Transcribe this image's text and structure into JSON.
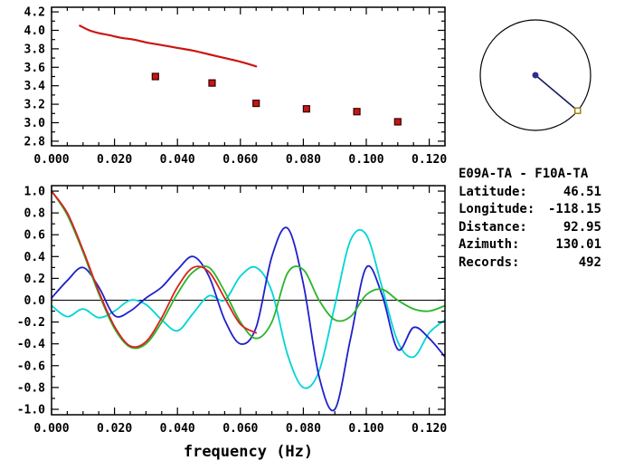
{
  "station_info": {
    "title": "E09A-TA - F10A-TA",
    "fields": [
      {
        "label": "Latitude:",
        "value": "46.51"
      },
      {
        "label": "Longitude:",
        "value": "-118.15"
      },
      {
        "label": "Distance:",
        "value": "92.95"
      },
      {
        "label": "Azimuth:",
        "value": "130.01"
      },
      {
        "label": "Records:",
        "value": "492"
      }
    ]
  },
  "azimuth_dial": {
    "azimuth_deg": 130.01,
    "line_color": "#1b1b5e",
    "dot_color": "#2e2e8f",
    "marker_color": "#a07800"
  },
  "chart_data": [
    {
      "type": "line",
      "title": "",
      "xlabel": "",
      "ylabel": "",
      "grid": false,
      "legend": "none",
      "xlim": [
        0,
        0.125
      ],
      "ylim": [
        2.75,
        4.25
      ],
      "xticks": [
        0,
        0.02,
        0.04,
        0.06,
        0.08,
        0.1,
        0.12
      ],
      "xtick_labels": [
        "0.000",
        "0.020",
        "0.040",
        "0.060",
        "0.080",
        "0.100",
        "0.120"
      ],
      "xminor_step": 0.005,
      "yticks": [
        2.8,
        3.0,
        3.2,
        3.4,
        3.6,
        3.8,
        4.0,
        4.2
      ],
      "ytick_labels": [
        "2.8",
        "3.0",
        "3.2",
        "3.4",
        "3.6",
        "3.8",
        "4.0",
        "4.2"
      ],
      "yminor_step": 0.1,
      "zero_line": false,
      "series": [
        {
          "name": "model-curve",
          "style": "line",
          "color": "#cc1414",
          "width": 2.2,
          "x": [
            0.009,
            0.012,
            0.015,
            0.018,
            0.022,
            0.026,
            0.03,
            0.035,
            0.04,
            0.045,
            0.05,
            0.055,
            0.06,
            0.065
          ],
          "y": [
            4.05,
            4.0,
            3.97,
            3.95,
            3.92,
            3.9,
            3.87,
            3.84,
            3.81,
            3.78,
            3.74,
            3.7,
            3.66,
            3.61
          ]
        },
        {
          "name": "measured-points",
          "style": "scatter-square",
          "color": "#c01818",
          "edge_color": "#3a0000",
          "x": [
            0.033,
            0.051,
            0.065,
            0.081,
            0.097,
            0.11
          ],
          "y": [
            3.5,
            3.43,
            3.21,
            3.15,
            3.12,
            3.01
          ]
        }
      ]
    },
    {
      "type": "line",
      "title": "",
      "xlabel": "frequency (Hz)",
      "ylabel": "",
      "grid": false,
      "legend": "none",
      "xlim": [
        0,
        0.125
      ],
      "ylim": [
        -1.05,
        1.05
      ],
      "xticks": [
        0,
        0.02,
        0.04,
        0.06,
        0.08,
        0.1,
        0.12
      ],
      "xtick_labels": [
        "0.000",
        "0.020",
        "0.040",
        "0.060",
        "0.080",
        "0.100",
        "0.120"
      ],
      "xminor_step": 0.005,
      "yticks": [
        -1.0,
        -0.8,
        -0.6,
        -0.4,
        -0.2,
        0.0,
        0.2,
        0.4,
        0.6,
        0.8,
        1.0
      ],
      "ytick_labels": [
        "-1.0",
        "-0.8",
        "-0.6",
        "-0.4",
        "-0.2",
        "0.0",
        "0.2",
        "0.4",
        "0.6",
        "0.8",
        "1.0"
      ],
      "yminor_step": 0.1,
      "zero_line": true,
      "series": [
        {
          "name": "trace-cyan",
          "style": "line",
          "color": "#00d5d5",
          "width": 1.8,
          "x": [
            0,
            0.005,
            0.01,
            0.015,
            0.02,
            0.025,
            0.03,
            0.035,
            0.04,
            0.045,
            0.05,
            0.055,
            0.06,
            0.065,
            0.07,
            0.075,
            0.08,
            0.085,
            0.09,
            0.095,
            0.1,
            0.105,
            0.11,
            0.115,
            0.12,
            0.125
          ],
          "y": [
            -0.05,
            -0.15,
            -0.08,
            -0.16,
            -0.1,
            0.0,
            -0.04,
            -0.18,
            -0.28,
            -0.12,
            0.04,
            0.0,
            0.22,
            0.3,
            0.08,
            -0.5,
            -0.8,
            -0.65,
            -0.05,
            0.55,
            0.6,
            0.12,
            -0.38,
            -0.52,
            -0.3,
            -0.18
          ]
        },
        {
          "name": "trace-blue",
          "style": "line",
          "color": "#2020cc",
          "width": 1.8,
          "x": [
            0,
            0.005,
            0.01,
            0.015,
            0.02,
            0.025,
            0.03,
            0.035,
            0.04,
            0.045,
            0.05,
            0.055,
            0.06,
            0.065,
            0.07,
            0.075,
            0.08,
            0.085,
            0.09,
            0.095,
            0.1,
            0.105,
            0.11,
            0.115,
            0.12,
            0.125
          ],
          "y": [
            0.02,
            0.18,
            0.3,
            0.12,
            -0.14,
            -0.1,
            0.02,
            0.12,
            0.28,
            0.4,
            0.22,
            -0.18,
            -0.4,
            -0.25,
            0.4,
            0.66,
            0.15,
            -0.7,
            -1.0,
            -0.35,
            0.3,
            0.05,
            -0.45,
            -0.25,
            -0.35,
            -0.52
          ]
        },
        {
          "name": "trace-green",
          "style": "line",
          "color": "#2ab52a",
          "width": 1.8,
          "x": [
            0,
            0.005,
            0.01,
            0.015,
            0.02,
            0.025,
            0.03,
            0.035,
            0.04,
            0.045,
            0.05,
            0.055,
            0.06,
            0.065,
            0.07,
            0.075,
            0.08,
            0.085,
            0.09,
            0.095,
            0.1,
            0.105,
            0.11,
            0.115,
            0.12,
            0.125
          ],
          "y": [
            1.0,
            0.78,
            0.44,
            0.06,
            -0.26,
            -0.43,
            -0.4,
            -0.2,
            0.06,
            0.26,
            0.3,
            0.08,
            -0.2,
            -0.35,
            -0.2,
            0.25,
            0.28,
            0.0,
            -0.18,
            -0.15,
            0.05,
            0.1,
            0.0,
            -0.08,
            -0.1,
            -0.05
          ]
        },
        {
          "name": "trace-red",
          "style": "line",
          "color": "#dd2020",
          "width": 1.8,
          "x": [
            0,
            0.005,
            0.01,
            0.015,
            0.02,
            0.025,
            0.03,
            0.035,
            0.04,
            0.045,
            0.05,
            0.055,
            0.06,
            0.065
          ],
          "y": [
            1.0,
            0.8,
            0.46,
            0.08,
            -0.24,
            -0.42,
            -0.38,
            -0.16,
            0.12,
            0.3,
            0.26,
            0.02,
            -0.22,
            -0.3
          ]
        }
      ]
    }
  ]
}
